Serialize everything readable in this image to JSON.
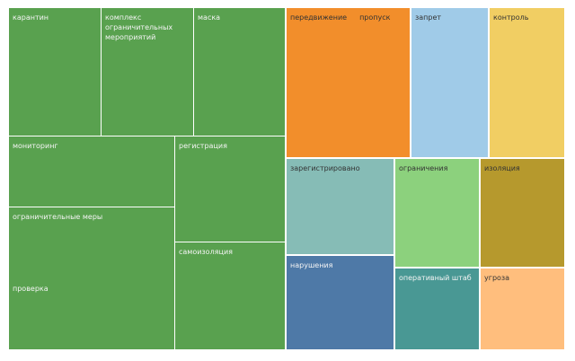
{
  "chart_data": {
    "type": "treemap",
    "title": "",
    "items": [
      {
        "label": "карантин",
        "group": "green",
        "color": "#59a14f"
      },
      {
        "label": "комплекс ограничительных мероприятий",
        "group": "green",
        "color": "#59a14f"
      },
      {
        "label": "маска",
        "group": "green",
        "color": "#59a14f"
      },
      {
        "label": "мониторинг",
        "group": "green",
        "color": "#59a14f"
      },
      {
        "label": "регистрация",
        "group": "green",
        "color": "#59a14f"
      },
      {
        "label": "ограничительные меры",
        "group": "green",
        "color": "#59a14f"
      },
      {
        "label": "проверка",
        "group": "green",
        "color": "#59a14f"
      },
      {
        "label": "самоизоляция",
        "group": "green",
        "color": "#59a14f"
      },
      {
        "label": "передвижение",
        "label2": "пропуск",
        "color": "#f28e2b"
      },
      {
        "label": "запрет",
        "color": "#a0cbe8"
      },
      {
        "label": "контроль",
        "color": "#f1ce63"
      },
      {
        "label": "зарегистрировано",
        "color": "#86bcb6"
      },
      {
        "label": "нарушения",
        "color": "#4e79a7"
      },
      {
        "label": "ограничения",
        "color": "#8cd17d"
      },
      {
        "label": "оперативный штаб",
        "color": "#499894"
      },
      {
        "label": "изоляция",
        "color": "#b6992d"
      },
      {
        "label": "угроза",
        "color": "#ffbe7d"
      }
    ]
  }
}
